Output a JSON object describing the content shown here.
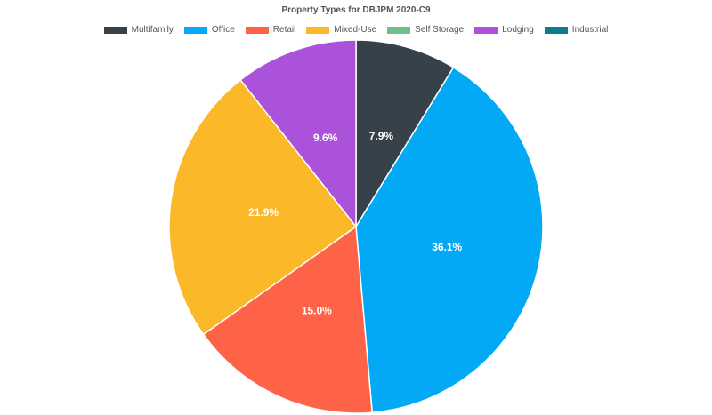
{
  "chart_data": {
    "type": "pie",
    "title": "Property Types for DBJPM 2020-C9",
    "legend_position": "top",
    "slices": [
      {
        "name": "Multifamily",
        "value": 7.9,
        "label": "7.9%",
        "color": "#36414a"
      },
      {
        "name": "Office",
        "value": 36.1,
        "label": "36.1%",
        "color": "#03a9f4"
      },
      {
        "name": "Retail",
        "value": 15.0,
        "label": "15.0%",
        "color": "#ff6347"
      },
      {
        "name": "Mixed-Use",
        "value": 21.9,
        "label": "21.9%",
        "color": "#fbb829"
      },
      {
        "name": "Self Storage",
        "value": 0,
        "label": "",
        "color": "#6fbf8a"
      },
      {
        "name": "Lodging",
        "value": 9.6,
        "label": "9.6%",
        "color": "#ab52db"
      },
      {
        "name": "Industrial",
        "value": 0,
        "label": "",
        "color": "#0f7a8a"
      }
    ]
  }
}
